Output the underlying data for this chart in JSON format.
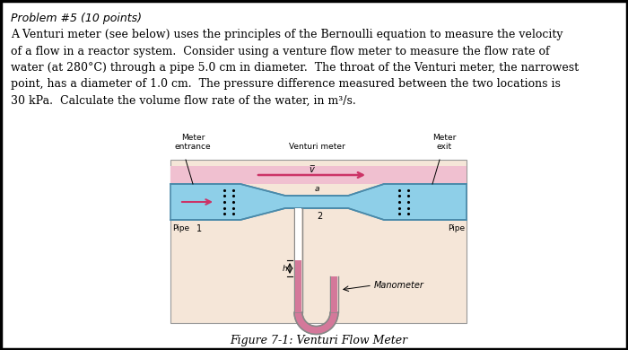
{
  "title_line": "Problem #5 (10 points)",
  "body_lines": [
    "A Venturi meter (see below) uses the principles of the Bernoulli equation to measure the velocity",
    "of a flow in a reactor system.  Consider using a venture flow meter to measure the flow rate of",
    "water (at 280°C) through a pipe 5.0 cm in diameter.  The throat of the Venturi meter, the narrowest",
    "point, has a diameter of 1.0 cm.  The pressure difference measured between the two locations is",
    "30 kPa.  Calculate the volume flow rate of the water, in m³/s."
  ],
  "label_meter_entrance": "Meter\nentrance",
  "label_venturi_meter": "Venturi meter",
  "label_meter_exit": "Meter\nexit",
  "label_pipe_left": "Pipe",
  "label_pipe_right": "Pipe",
  "label_1": "1",
  "label_2": "2",
  "label_a": "a",
  "label_h": "h",
  "label_manometer": "Manometer",
  "figure_caption": "Figure 7-1: Venturi Flow Meter",
  "bg_color": "#ffffff",
  "pipe_color": "#8ecfe8",
  "pipe_dark": "#4a8aaa",
  "manometer_color": "#d4789a",
  "manometer_bg": "#f5e6d8",
  "arrow_color": "#cc3366",
  "border_color": "#000000"
}
